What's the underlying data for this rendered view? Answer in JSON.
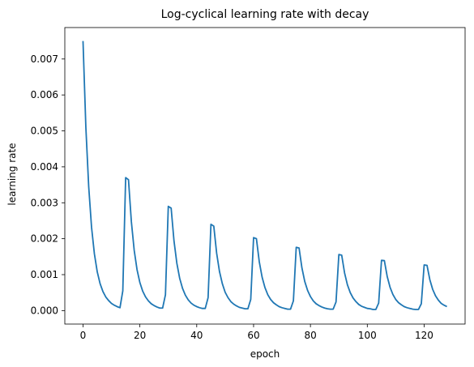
{
  "chart_data": {
    "type": "line",
    "title": "Log-cyclical learning rate with decay",
    "xlabel": "epoch",
    "ylabel": "learning rate",
    "xlim": [
      -6.4,
      134.4
    ],
    "ylim": [
      -0.000375,
      0.007875
    ],
    "xticks": [
      0,
      20,
      40,
      60,
      80,
      100,
      120
    ],
    "xtick_labels": [
      "0",
      "20",
      "40",
      "60",
      "80",
      "100",
      "120"
    ],
    "yticks": [
      0.0,
      0.001,
      0.002,
      0.003,
      0.004,
      0.005,
      0.006,
      0.007
    ],
    "ytick_labels": [
      "0.000",
      "0.001",
      "0.002",
      "0.003",
      "0.004",
      "0.005",
      "0.006",
      "0.007"
    ],
    "grid": false,
    "line_color": "#1f77b4",
    "series": [
      {
        "x": [
          0,
          1,
          2,
          3,
          4,
          5,
          6,
          7,
          8,
          9,
          10,
          11,
          12,
          13,
          14,
          15,
          16,
          17,
          18,
          19,
          20,
          21,
          22,
          23,
          24,
          25,
          26,
          27,
          28,
          29,
          30,
          31,
          32,
          33,
          34,
          35,
          36,
          37,
          38,
          39,
          40,
          41,
          42,
          43,
          44,
          45,
          46,
          47,
          48,
          49,
          50,
          51,
          52,
          53,
          54,
          55,
          56,
          57,
          58,
          59,
          60,
          61,
          62,
          63,
          64,
          65,
          66,
          67,
          68,
          69,
          70,
          71,
          72,
          73,
          74,
          75,
          76,
          77,
          78,
          79,
          80,
          81,
          82,
          83,
          84,
          85,
          86,
          87,
          88,
          89,
          90,
          91,
          92,
          93,
          94,
          95,
          96,
          97,
          98,
          99,
          100,
          101,
          102,
          103,
          104,
          105,
          106,
          107,
          108,
          109,
          110,
          111,
          112,
          113,
          114,
          115,
          116,
          117,
          118,
          119,
          120,
          121,
          122,
          123,
          124,
          125,
          126,
          127,
          128
        ],
        "y": [
          0.0075,
          0.0051,
          0.00345,
          0.00232,
          0.00158,
          0.00108,
          0.00075,
          0.00053,
          0.00038,
          0.00028,
          0.0002,
          0.00015,
          0.00011,
          8e-05,
          0.00055,
          0.0037,
          0.00364,
          0.00248,
          0.00168,
          0.00114,
          0.00078,
          0.00054,
          0.00038,
          0.00027,
          0.00019,
          0.00014,
          0.0001,
          7e-05,
          7e-05,
          0.00044,
          0.0029,
          0.00285,
          0.00194,
          0.00132,
          0.0009,
          0.00062,
          0.00043,
          0.0003,
          0.00021,
          0.00015,
          0.00011,
          8e-05,
          6e-05,
          6e-05,
          0.00036,
          0.0024,
          0.00235,
          0.0016,
          0.00109,
          0.00075,
          0.00051,
          0.00036,
          0.00025,
          0.00018,
          0.00013,
          9e-05,
          7e-05,
          5e-05,
          5e-05,
          0.00031,
          0.00203,
          0.002,
          0.00136,
          0.00093,
          0.00064,
          0.00044,
          0.00031,
          0.00022,
          0.00016,
          0.00011,
          8e-05,
          6e-05,
          4e-05,
          4e-05,
          0.00027,
          0.00176,
          0.00174,
          0.00119,
          0.00081,
          0.00056,
          0.00039,
          0.00027,
          0.00019,
          0.00014,
          0.0001,
          7e-05,
          5e-05,
          4e-05,
          4e-05,
          0.00024,
          0.00156,
          0.00154,
          0.00105,
          0.00072,
          0.0005,
          0.00035,
          0.00025,
          0.00017,
          0.00012,
          9e-05,
          6e-05,
          5e-05,
          3e-05,
          3e-05,
          0.00021,
          0.0014,
          0.00139,
          0.00095,
          0.00065,
          0.00045,
          0.00031,
          0.00022,
          0.00016,
          0.00011,
          8e-05,
          6e-05,
          4e-05,
          3e-05,
          3e-05,
          0.00019,
          0.00127,
          0.00126,
          0.00086,
          0.00059,
          0.00041,
          0.00029,
          0.0002,
          0.00015,
          0.00011
        ]
      }
    ]
  }
}
